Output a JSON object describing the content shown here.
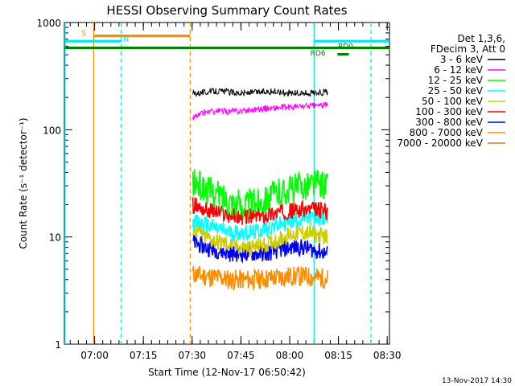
{
  "chart_data": {
    "type": "line",
    "title": "HESSI Observing Summary Count Rates",
    "xlabel": "Start Time (12-Nov-17 06:50:42)",
    "ylabel": "Count Rate (s⁻¹ detector⁻¹)",
    "y_scale": "log",
    "ylim": [
      1,
      1000
    ],
    "x_domain_minutes": [
      0,
      100
    ],
    "x_ticks": [
      {
        "t": 9.3,
        "label": "07:00"
      },
      {
        "t": 24.3,
        "label": "07:15"
      },
      {
        "t": 39.3,
        "label": "07:30"
      },
      {
        "t": 54.3,
        "label": "07:45"
      },
      {
        "t": 69.3,
        "label": "08:00"
      },
      {
        "t": 84.3,
        "label": "08:15"
      },
      {
        "t": 99.3,
        "label": "08:30"
      }
    ],
    "y_ticks": [
      {
        "v": 1,
        "label": "1"
      },
      {
        "v": 10,
        "label": "10"
      },
      {
        "v": 100,
        "label": "100"
      },
      {
        "v": 1000,
        "label": "1000"
      }
    ],
    "legend": {
      "header": [
        "Det 1,3,6,",
        "FDecim 3, Att 0"
      ],
      "placement": "right"
    },
    "data_window_minutes": [
      39.5,
      81.0
    ],
    "series": [
      {
        "name": "3 - 6 keV",
        "color": "#000000",
        "profile": [
          220,
          225,
          230,
          225,
          220,
          222,
          228,
          225,
          220,
          218,
          222,
          225
        ]
      },
      {
        "name": "6 - 12 keV",
        "color": "#ff00ff",
        "profile": [
          130,
          145,
          150,
          148,
          150,
          155,
          158,
          160,
          162,
          165,
          168,
          170
        ]
      },
      {
        "name": "12 - 25 keV",
        "color": "#00ff00",
        "profile": [
          32,
          28,
          25,
          22,
          20,
          21,
          23,
          26,
          28,
          30,
          32,
          30
        ]
      },
      {
        "name": "25 - 50 keV",
        "color": "#00ffff",
        "profile": [
          14,
          13,
          12,
          11,
          11,
          11,
          12,
          13,
          14,
          15,
          15,
          15
        ]
      },
      {
        "name": "50 - 100 keV",
        "color": "#cccc00",
        "profile": [
          12,
          10,
          9,
          8.5,
          8,
          8,
          8.5,
          9.5,
          10.5,
          11,
          10.5,
          10
        ]
      },
      {
        "name": "100 - 300 keV",
        "color": "#ff0000",
        "profile": [
          20,
          18,
          17,
          16,
          15.5,
          15.5,
          16,
          17,
          17.5,
          18,
          18,
          17.5
        ]
      },
      {
        "name": "300 - 800 keV",
        "color": "#0000ff",
        "profile": [
          9,
          8,
          7.5,
          7,
          7,
          7,
          7,
          7.5,
          8,
          8,
          7.5,
          7
        ]
      },
      {
        "name": "800 - 7000 keV",
        "color": "#ff8c00",
        "profile": [
          4.5,
          4.3,
          4.2,
          4.0,
          4.0,
          4.0,
          4.1,
          4.2,
          4.3,
          4.3,
          4.2,
          4.1
        ]
      },
      {
        "name": "7000 - 20000 keV",
        "color": "#b8860b",
        "profile": []
      }
    ],
    "annotations": {
      "verticals": [
        {
          "t": 0.2,
          "color": "#00e5ee",
          "style": "solid"
        },
        {
          "t": 9.0,
          "color": "#ff8c00",
          "style": "solid"
        },
        {
          "t": 17.5,
          "color": "#00e5ee",
          "style": "dashed"
        },
        {
          "t": 38.7,
          "color": "#ff8c00",
          "style": "dashed"
        },
        {
          "t": 76.8,
          "color": "#00e5ee",
          "style": "solid"
        },
        {
          "t": 94.3,
          "color": "#00e5ee",
          "style": "dashed"
        }
      ],
      "bars": [
        {
          "label": "S",
          "color": "#ff8c00",
          "t0": 9.0,
          "t1": 38.7,
          "v": 750
        },
        {
          "label": "N",
          "color": "#00e5ee",
          "t0": 0.2,
          "t1": 17.5,
          "v": 670
        },
        {
          "label": "",
          "color": "#00e5ee",
          "t0": 76.8,
          "t1": 100,
          "v": 670
        },
        {
          "label": "",
          "color": "#008000",
          "t0": 0.2,
          "t1": 100,
          "v": 580
        },
        {
          "label": "RD0",
          "color": "#008000",
          "t0": 84.0,
          "t1": 87.5,
          "v": 505
        }
      ],
      "bar_labels": [
        {
          "text": "S",
          "color": "#ff8c00",
          "t": 6.0,
          "v": 790
        },
        {
          "text": "N",
          "color": "#00e5ee",
          "t": 19.0,
          "v": 700
        },
        {
          "text": "RD0",
          "color": "#008000",
          "t": 86.5,
          "v": 600
        },
        {
          "text": "RD6",
          "color": "#008000",
          "t": 78.0,
          "v": 520
        }
      ]
    }
  },
  "footer_timestamp": "13-Nov-2017 14:30"
}
